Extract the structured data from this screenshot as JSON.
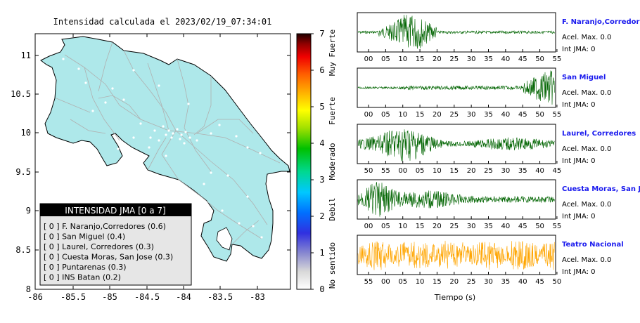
{
  "map": {
    "title": "Intensidad calculada el 2023/02/19_07:34:01",
    "x_ticks": [
      "-86",
      "-85.5",
      "-85",
      "-84.5",
      "-84",
      "-83.5",
      "-83"
    ],
    "y_ticks": [
      "11",
      "10.5",
      "10",
      "9.5",
      "9",
      "8.5",
      "8"
    ],
    "land_color": "#aee8ea",
    "road_color": "#b0b0b0"
  },
  "colorbar": {
    "ticks": [
      "0",
      "1",
      "2",
      "3",
      "4",
      "5",
      "6",
      "7"
    ],
    "categories": [
      "No sentido",
      "Debil",
      "Moderado",
      "Fuerte",
      "Muy Fuerte"
    ]
  },
  "legend": {
    "title": "INTENSIDAD JMA [0 a 7]",
    "items": [
      {
        "prefix": "[ 0 ]",
        "label": "F. Naranjo,Corredores (0.6)"
      },
      {
        "prefix": "[ 0 ]",
        "label": "San Miguel (0.4)"
      },
      {
        "prefix": "[ 0 ]",
        "label": "Laurel, Corredores (0.3)"
      },
      {
        "prefix": "[ 0 ]",
        "label": "Cuesta Moras, San Jose (0.3)"
      },
      {
        "prefix": "[ 0 ]",
        "label": "Puntarenas (0.3)"
      },
      {
        "prefix": "[ 0 ]",
        "label": "INS Batan (0.2)"
      }
    ]
  },
  "waveforms": [
    {
      "station": "F. Naranjo,Corredores",
      "accel": "Acel. Max. 0.0",
      "jma": "Int JMA: 0",
      "color": "#006400",
      "ticks": [
        "00",
        "05",
        "10",
        "15",
        "20",
        "25",
        "30",
        "35",
        "40",
        "45",
        "50",
        "55"
      ]
    },
    {
      "station": "San Miguel",
      "accel": "Acel. Max. 0.0",
      "jma": "Int JMA: 0",
      "color": "#006400",
      "ticks": [
        "00",
        "05",
        "10",
        "15",
        "20",
        "25",
        "30",
        "35",
        "40",
        "45",
        "50",
        "55"
      ]
    },
    {
      "station": "Laurel, Corredores",
      "accel": "Acel. Max. 0.0",
      "jma": "Int JMA: 0",
      "color": "#006400",
      "ticks": [
        "50",
        "55",
        "00",
        "05",
        "10",
        "15",
        "20",
        "25",
        "30",
        "35",
        "40",
        "45"
      ]
    },
    {
      "station": "Cuesta Moras, San Jose",
      "accel": "Acel. Max. 0.0",
      "jma": "Int JMA: 0",
      "color": "#006400",
      "ticks": [
        "00",
        "05",
        "10",
        "15",
        "20",
        "25",
        "30",
        "35",
        "40",
        "45",
        "50",
        "55"
      ]
    },
    {
      "station": "Teatro Nacional",
      "accel": "Acel. Max. 0.0",
      "jma": "Int JMA: 0",
      "color": "#ffa500",
      "ticks": [
        "55",
        "00",
        "05",
        "10",
        "15",
        "20",
        "25",
        "30",
        "35",
        "40",
        "45",
        "50"
      ]
    }
  ],
  "xlabel": "Tiempo (s)",
  "chart_data": [
    {
      "type": "scatter",
      "title": "Intensidad calculada el 2023/02/19_07:34:01",
      "xlim": [
        -86,
        -82.5
      ],
      "ylim": [
        8,
        11.3
      ],
      "colorbar_range": [
        0,
        7
      ],
      "legend_placement": "bottom-left",
      "series": [
        {
          "name": "INTENSIDAD JMA [0 a 7]",
          "points": [
            {
              "label": "F. Naranjo,Corredores",
              "value": 0.6
            },
            {
              "label": "San Miguel",
              "value": 0.4
            },
            {
              "label": "Laurel, Corredores",
              "value": 0.3
            },
            {
              "label": "Cuesta Moras, San Jose",
              "value": 0.3
            },
            {
              "label": "Puntarenas",
              "value": 0.3
            },
            {
              "label": "INS Batan",
              "value": 0.2
            }
          ]
        }
      ]
    },
    {
      "type": "line",
      "xlabel": "Tiempo (s)",
      "series": [
        {
          "name": "F. Naranjo,Corredores",
          "acel_max": 0.0,
          "int_jma": 0
        },
        {
          "name": "San Miguel",
          "acel_max": 0.0,
          "int_jma": 0
        },
        {
          "name": "Laurel, Corredores",
          "acel_max": 0.0,
          "int_jma": 0
        },
        {
          "name": "Cuesta Moras, San Jose",
          "acel_max": 0.0,
          "int_jma": 0
        },
        {
          "name": "Teatro Nacional",
          "acel_max": 0.0,
          "int_jma": 0
        }
      ]
    }
  ]
}
